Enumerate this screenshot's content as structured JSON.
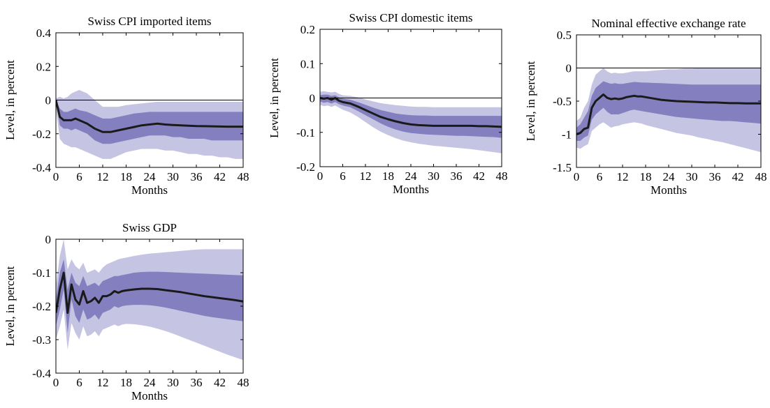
{
  "chart_data": [
    {
      "type": "line",
      "title": "Swiss CPI imported items",
      "xlabel": "Months",
      "ylabel": "Level, in percent",
      "xlim": [
        0,
        48
      ],
      "ylim": [
        -0.4,
        0.4
      ],
      "xticks": [
        0,
        6,
        12,
        18,
        24,
        30,
        36,
        42,
        48
      ],
      "xtick_labels": [
        "0",
        "6",
        "12",
        "18",
        "24",
        "30",
        "36",
        "42",
        "48"
      ],
      "yticks": [
        0.4,
        0.2,
        0,
        -0.2,
        -0.4
      ],
      "ytick_labels": [
        "0.4",
        "0.2",
        "0",
        "-0.2",
        "-0.4"
      ],
      "reference_line": 0,
      "grid": false,
      "colors": {
        "line": "#1a1a1a",
        "inner_band": "#8480bf",
        "outer_band": "#c6c4e3"
      },
      "x": [
        0,
        1,
        2,
        3,
        4,
        5,
        6,
        8,
        10,
        12,
        14,
        16,
        18,
        20,
        22,
        24,
        26,
        28,
        30,
        32,
        34,
        36,
        38,
        40,
        42,
        44,
        46,
        48
      ],
      "y": [
        0,
        -0.1,
        -0.12,
        -0.12,
        -0.12,
        -0.11,
        -0.12,
        -0.14,
        -0.17,
        -0.19,
        -0.19,
        -0.18,
        -0.17,
        -0.16,
        -0.15,
        -0.145,
        -0.14,
        -0.145,
        -0.148,
        -0.15,
        -0.152,
        -0.154,
        -0.155,
        -0.156,
        -0.157,
        -0.158,
        -0.158,
        -0.158
      ],
      "inner_upper": [
        0,
        -0.05,
        -0.07,
        -0.07,
        -0.06,
        -0.05,
        -0.06,
        -0.07,
        -0.09,
        -0.11,
        -0.11,
        -0.1,
        -0.09,
        -0.08,
        -0.075,
        -0.07,
        -0.07,
        -0.07,
        -0.07,
        -0.07,
        -0.07,
        -0.07,
        -0.07,
        -0.07,
        -0.07,
        -0.07,
        -0.07,
        -0.07
      ],
      "inner_lower": [
        0,
        -0.15,
        -0.17,
        -0.17,
        -0.18,
        -0.17,
        -0.18,
        -0.2,
        -0.24,
        -0.26,
        -0.26,
        -0.25,
        -0.24,
        -0.23,
        -0.22,
        -0.21,
        -0.21,
        -0.21,
        -0.22,
        -0.22,
        -0.23,
        -0.23,
        -0.23,
        -0.24,
        -0.24,
        -0.24,
        -0.24,
        -0.24
      ],
      "outer_upper": [
        0.01,
        0.02,
        0.01,
        0.02,
        0.04,
        0.05,
        0.06,
        0.04,
        0.0,
        -0.04,
        -0.04,
        -0.04,
        -0.03,
        -0.025,
        -0.02,
        -0.015,
        -0.01,
        -0.01,
        -0.01,
        -0.01,
        -0.01,
        -0.01,
        -0.01,
        -0.01,
        -0.01,
        -0.01,
        -0.01,
        -0.01
      ],
      "outer_lower": [
        -0.05,
        -0.23,
        -0.26,
        -0.27,
        -0.28,
        -0.28,
        -0.29,
        -0.31,
        -0.33,
        -0.35,
        -0.35,
        -0.33,
        -0.31,
        -0.3,
        -0.29,
        -0.29,
        -0.29,
        -0.3,
        -0.3,
        -0.31,
        -0.32,
        -0.32,
        -0.33,
        -0.33,
        -0.34,
        -0.34,
        -0.35,
        -0.35
      ]
    },
    {
      "type": "line",
      "title": "Swiss CPI domestic items",
      "xlabel": "Months",
      "ylabel": "Level, in percent",
      "xlim": [
        0,
        48
      ],
      "ylim": [
        -0.2,
        0.2
      ],
      "xticks": [
        0,
        6,
        12,
        18,
        24,
        30,
        36,
        42,
        48
      ],
      "xtick_labels": [
        "0",
        "6",
        "12",
        "18",
        "24",
        "30",
        "36",
        "42",
        "48"
      ],
      "yticks": [
        0.2,
        0.1,
        0,
        -0.1,
        -0.2
      ],
      "ytick_labels": [
        "0.2",
        "0.1",
        "0",
        "-0.1",
        "-0.2"
      ],
      "reference_line": 0,
      "grid": false,
      "colors": {
        "line": "#1a1a1a",
        "inner_band": "#8480bf",
        "outer_band": "#c6c4e3"
      },
      "x": [
        0,
        1,
        2,
        3,
        4,
        5,
        6,
        8,
        10,
        12,
        14,
        16,
        18,
        20,
        22,
        24,
        26,
        28,
        30,
        32,
        34,
        36,
        38,
        40,
        42,
        44,
        46,
        48
      ],
      "y": [
        0,
        -0.002,
        0,
        -0.005,
        0,
        -0.008,
        -0.012,
        -0.016,
        -0.025,
        -0.035,
        -0.045,
        -0.055,
        -0.062,
        -0.068,
        -0.073,
        -0.077,
        -0.079,
        -0.08,
        -0.081,
        -0.081,
        -0.081,
        -0.081,
        -0.081,
        -0.081,
        -0.082,
        -0.082,
        -0.083,
        -0.084
      ],
      "inner_upper": [
        0.008,
        0.01,
        0.01,
        0.006,
        0.008,
        0.002,
        -0.002,
        -0.005,
        -0.012,
        -0.02,
        -0.028,
        -0.035,
        -0.04,
        -0.045,
        -0.048,
        -0.05,
        -0.051,
        -0.051,
        -0.052,
        -0.052,
        -0.052,
        -0.052,
        -0.052,
        -0.052,
        -0.052,
        -0.052,
        -0.052,
        -0.052
      ],
      "inner_lower": [
        -0.01,
        -0.014,
        -0.012,
        -0.016,
        -0.012,
        -0.018,
        -0.022,
        -0.027,
        -0.038,
        -0.05,
        -0.062,
        -0.074,
        -0.084,
        -0.092,
        -0.098,
        -0.102,
        -0.104,
        -0.106,
        -0.107,
        -0.108,
        -0.109,
        -0.11,
        -0.11,
        -0.111,
        -0.112,
        -0.113,
        -0.114,
        -0.116
      ],
      "outer_upper": [
        0.018,
        0.02,
        0.018,
        0.016,
        0.018,
        0.012,
        0.008,
        0.006,
        0.002,
        -0.004,
        -0.01,
        -0.015,
        -0.018,
        -0.021,
        -0.023,
        -0.025,
        -0.026,
        -0.026,
        -0.027,
        -0.027,
        -0.027,
        -0.027,
        -0.027,
        -0.027,
        -0.027,
        -0.027,
        -0.027,
        -0.027
      ],
      "outer_lower": [
        -0.02,
        -0.024,
        -0.022,
        -0.026,
        -0.022,
        -0.028,
        -0.034,
        -0.042,
        -0.055,
        -0.07,
        -0.085,
        -0.098,
        -0.108,
        -0.117,
        -0.124,
        -0.129,
        -0.133,
        -0.136,
        -0.139,
        -0.141,
        -0.143,
        -0.145,
        -0.147,
        -0.149,
        -0.152,
        -0.155,
        -0.158,
        -0.161
      ]
    },
    {
      "type": "line",
      "title": "Nominal effective exchange rate",
      "xlabel": "Months",
      "ylabel": "Level, in percent",
      "xlim": [
        0,
        48
      ],
      "ylim": [
        -1.5,
        0.5
      ],
      "xticks": [
        0,
        6,
        12,
        18,
        24,
        30,
        36,
        42,
        48
      ],
      "xtick_labels": [
        "0",
        "6",
        "12",
        "18",
        "24",
        "30",
        "36",
        "42",
        "48"
      ],
      "yticks": [
        0.5,
        0,
        -0.5,
        -1,
        -1.5
      ],
      "ytick_labels": [
        "0.5",
        "0",
        "-0.5",
        "-1",
        "-1.5"
      ],
      "reference_line": 0,
      "grid": false,
      "colors": {
        "line": "#1a1a1a",
        "inner_band": "#8480bf",
        "outer_band": "#c6c4e3"
      },
      "x": [
        0,
        1,
        2,
        3,
        4,
        5,
        6,
        7,
        8,
        9,
        10,
        11,
        12,
        13,
        14,
        15,
        16,
        17,
        18,
        20,
        22,
        24,
        26,
        28,
        30,
        32,
        34,
        36,
        38,
        40,
        42,
        44,
        46,
        48
      ],
      "y": [
        -1.0,
        -0.98,
        -0.92,
        -0.9,
        -0.6,
        -0.5,
        -0.45,
        -0.4,
        -0.45,
        -0.47,
        -0.46,
        -0.47,
        -0.46,
        -0.44,
        -0.43,
        -0.42,
        -0.43,
        -0.43,
        -0.44,
        -0.46,
        -0.48,
        -0.49,
        -0.5,
        -0.505,
        -0.51,
        -0.515,
        -0.52,
        -0.52,
        -0.525,
        -0.53,
        -0.53,
        -0.535,
        -0.535,
        -0.535
      ],
      "inner_upper": [
        -0.9,
        -0.85,
        -0.75,
        -0.65,
        -0.42,
        -0.3,
        -0.25,
        -0.2,
        -0.22,
        -0.24,
        -0.23,
        -0.24,
        -0.24,
        -0.23,
        -0.22,
        -0.21,
        -0.215,
        -0.22,
        -0.22,
        -0.225,
        -0.23,
        -0.235,
        -0.24,
        -0.245,
        -0.25,
        -0.25,
        -0.25,
        -0.25,
        -0.25,
        -0.25,
        -0.25,
        -0.25,
        -0.25,
        -0.25
      ],
      "inner_lower": [
        -1.1,
        -1.1,
        -1.05,
        -1.02,
        -0.78,
        -0.7,
        -0.65,
        -0.6,
        -0.66,
        -0.7,
        -0.7,
        -0.7,
        -0.68,
        -0.66,
        -0.64,
        -0.63,
        -0.64,
        -0.65,
        -0.66,
        -0.68,
        -0.7,
        -0.72,
        -0.74,
        -0.75,
        -0.76,
        -0.77,
        -0.78,
        -0.79,
        -0.8,
        -0.8,
        -0.81,
        -0.82,
        -0.83,
        -0.84
      ],
      "outer_upper": [
        -0.8,
        -0.75,
        -0.6,
        -0.5,
        -0.25,
        -0.1,
        -0.05,
        0.0,
        -0.05,
        -0.08,
        -0.07,
        -0.08,
        -0.08,
        -0.07,
        -0.06,
        -0.05,
        -0.05,
        -0.05,
        -0.05,
        -0.04,
        -0.03,
        -0.02,
        -0.02,
        -0.01,
        -0.01,
        0.0,
        0.0,
        0.0,
        0.0,
        0.0,
        0.0,
        0.0,
        0.0,
        0.0
      ],
      "outer_lower": [
        -1.2,
        -1.22,
        -1.18,
        -1.15,
        -0.95,
        -0.9,
        -0.85,
        -0.82,
        -0.86,
        -0.9,
        -0.88,
        -0.87,
        -0.85,
        -0.84,
        -0.83,
        -0.82,
        -0.83,
        -0.84,
        -0.86,
        -0.89,
        -0.92,
        -0.95,
        -0.98,
        -1.0,
        -1.02,
        -1.05,
        -1.07,
        -1.1,
        -1.12,
        -1.15,
        -1.18,
        -1.21,
        -1.24,
        -1.27
      ]
    },
    {
      "type": "line",
      "title": "Swiss GDP",
      "xlabel": "Months",
      "ylabel": "Level, in percent",
      "xlim": [
        0,
        48
      ],
      "ylim": [
        -0.4,
        0
      ],
      "xticks": [
        0,
        6,
        12,
        18,
        24,
        30,
        36,
        42,
        48
      ],
      "xtick_labels": [
        "0",
        "6",
        "12",
        "18",
        "24",
        "30",
        "36",
        "42",
        "48"
      ],
      "yticks": [
        0,
        -0.1,
        -0.2,
        -0.3,
        -0.4
      ],
      "ytick_labels": [
        "0",
        "-0.1",
        "-0.2",
        "-0.3",
        "-0.4"
      ],
      "reference_line": null,
      "grid": false,
      "colors": {
        "line": "#1a1a1a",
        "inner_band": "#8480bf",
        "outer_band": "#c6c4e3"
      },
      "x": [
        0,
        1,
        2,
        3,
        4,
        5,
        6,
        7,
        8,
        9,
        10,
        11,
        12,
        13,
        14,
        15,
        16,
        17,
        18,
        20,
        22,
        24,
        26,
        28,
        30,
        32,
        34,
        36,
        38,
        40,
        42,
        44,
        46,
        48
      ],
      "y": [
        -0.22,
        -0.15,
        -0.1,
        -0.22,
        -0.135,
        -0.18,
        -0.195,
        -0.155,
        -0.19,
        -0.185,
        -0.175,
        -0.19,
        -0.17,
        -0.17,
        -0.165,
        -0.155,
        -0.16,
        -0.155,
        -0.153,
        -0.15,
        -0.148,
        -0.148,
        -0.149,
        -0.152,
        -0.155,
        -0.158,
        -0.162,
        -0.166,
        -0.17,
        -0.173,
        -0.176,
        -0.179,
        -0.182,
        -0.186
      ],
      "inner_upper": [
        -0.18,
        -0.1,
        -0.06,
        -0.15,
        -0.1,
        -0.13,
        -0.14,
        -0.11,
        -0.14,
        -0.135,
        -0.13,
        -0.14,
        -0.125,
        -0.12,
        -0.115,
        -0.11,
        -0.11,
        -0.107,
        -0.105,
        -0.1,
        -0.098,
        -0.097,
        -0.097,
        -0.098,
        -0.099,
        -0.1,
        -0.101,
        -0.102,
        -0.103,
        -0.104,
        -0.105,
        -0.106,
        -0.107,
        -0.108
      ],
      "inner_lower": [
        -0.26,
        -0.21,
        -0.15,
        -0.28,
        -0.18,
        -0.23,
        -0.25,
        -0.21,
        -0.24,
        -0.235,
        -0.225,
        -0.24,
        -0.22,
        -0.215,
        -0.21,
        -0.2,
        -0.205,
        -0.2,
        -0.198,
        -0.196,
        -0.196,
        -0.197,
        -0.2,
        -0.204,
        -0.209,
        -0.214,
        -0.219,
        -0.224,
        -0.229,
        -0.233,
        -0.236,
        -0.239,
        -0.242,
        -0.245
      ],
      "outer_upper": [
        -0.14,
        -0.05,
        0.0,
        -0.09,
        -0.06,
        -0.08,
        -0.09,
        -0.07,
        -0.1,
        -0.095,
        -0.09,
        -0.1,
        -0.085,
        -0.075,
        -0.07,
        -0.065,
        -0.06,
        -0.057,
        -0.055,
        -0.05,
        -0.046,
        -0.043,
        -0.041,
        -0.039,
        -0.037,
        -0.035,
        -0.033,
        -0.031,
        -0.03,
        -0.03,
        -0.03,
        -0.03,
        -0.03,
        -0.03
      ],
      "outer_lower": [
        -0.3,
        -0.26,
        -0.21,
        -0.33,
        -0.25,
        -0.28,
        -0.3,
        -0.26,
        -0.29,
        -0.285,
        -0.275,
        -0.29,
        -0.27,
        -0.265,
        -0.26,
        -0.255,
        -0.26,
        -0.255,
        -0.253,
        -0.254,
        -0.257,
        -0.261,
        -0.267,
        -0.274,
        -0.282,
        -0.291,
        -0.3,
        -0.309,
        -0.318,
        -0.327,
        -0.336,
        -0.345,
        -0.353,
        -0.361
      ]
    }
  ]
}
